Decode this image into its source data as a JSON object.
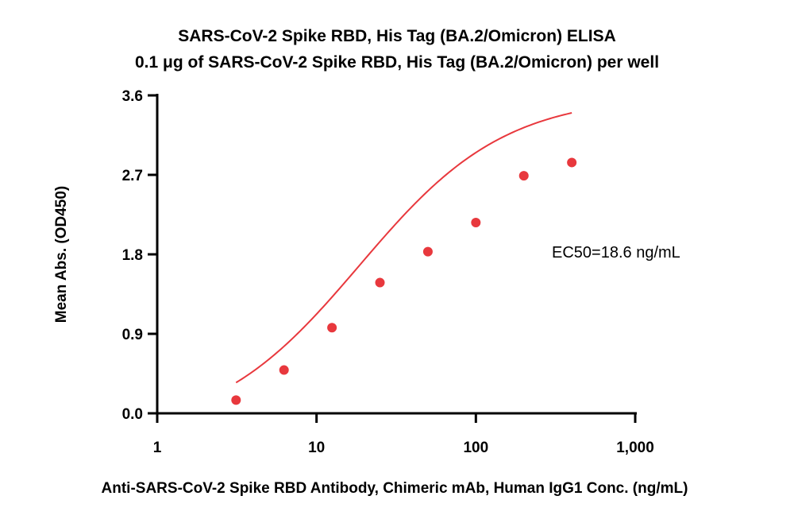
{
  "chart_data": {
    "type": "scatter",
    "title": "SARS-CoV-2 Spike RBD, His Tag (BA.2/Omicron) ELISA",
    "subtitle": "0.1 μg of SARS-CoV-2 Spike RBD, His Tag (BA.2/Omicron) per well",
    "xlabel": "Anti-SARS-CoV-2 Spike RBD Antibody, Chimeric mAb, Human IgG1 Conc. (ng/mL)",
    "ylabel": "Mean Abs. (OD450)",
    "x_scale": "log",
    "xlim": [
      1,
      1000
    ],
    "ylim": [
      0,
      3.6
    ],
    "x_ticks": [
      1,
      10,
      100,
      1000
    ],
    "x_tick_labels": [
      "1",
      "10",
      "100",
      "1,000"
    ],
    "y_ticks": [
      0,
      0.9,
      1.8,
      2.7,
      3.6
    ],
    "y_tick_labels": [
      "0.0",
      "0.9",
      "1.8",
      "2.7",
      "3.6"
    ],
    "grid": false,
    "colors": {
      "points": "#e8383d",
      "curve": "#e8383d",
      "axis": "#000000"
    },
    "series": [
      {
        "x": [
          3.125,
          6.25,
          12.5,
          25,
          50,
          100,
          200,
          400
        ],
        "y": [
          0.15,
          0.49,
          0.97,
          1.48,
          1.83,
          2.16,
          2.69,
          2.84
        ]
      }
    ],
    "fit_curve": {
      "model": "4PL",
      "bottom": -0.25,
      "top": 3.6,
      "ec50": 18.6,
      "hill": 0.95,
      "x_range": [
        3.125,
        400
      ]
    },
    "annotation": "EC50=18.6 ng/mL"
  }
}
